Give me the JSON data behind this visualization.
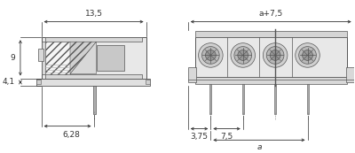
{
  "bg_color": "#ffffff",
  "line_color": "#555555",
  "dim_color": "#333333",
  "body_fill": "#e0e0e0",
  "body_fill2": "#d0d0d0",
  "hatch_fill": "#f0f0f0",
  "gray_fill": "#c0c0c0",
  "dark_gray": "#909090",
  "screw_outer": "#c8c8c8",
  "screw_mid": "#aaaaaa",
  "screw_inner": "#888888",
  "fig_width": 4.0,
  "fig_height": 1.73,
  "dpi": 100,
  "dim_13_5": "13,5",
  "dim_9": "9",
  "dim_4_1": "4,1",
  "dim_6_28": "6,28",
  "dim_a75": "a+7,5",
  "dim_375": "3,75",
  "dim_75": "7,5",
  "dim_a": "a",
  "font_size": 6.5
}
